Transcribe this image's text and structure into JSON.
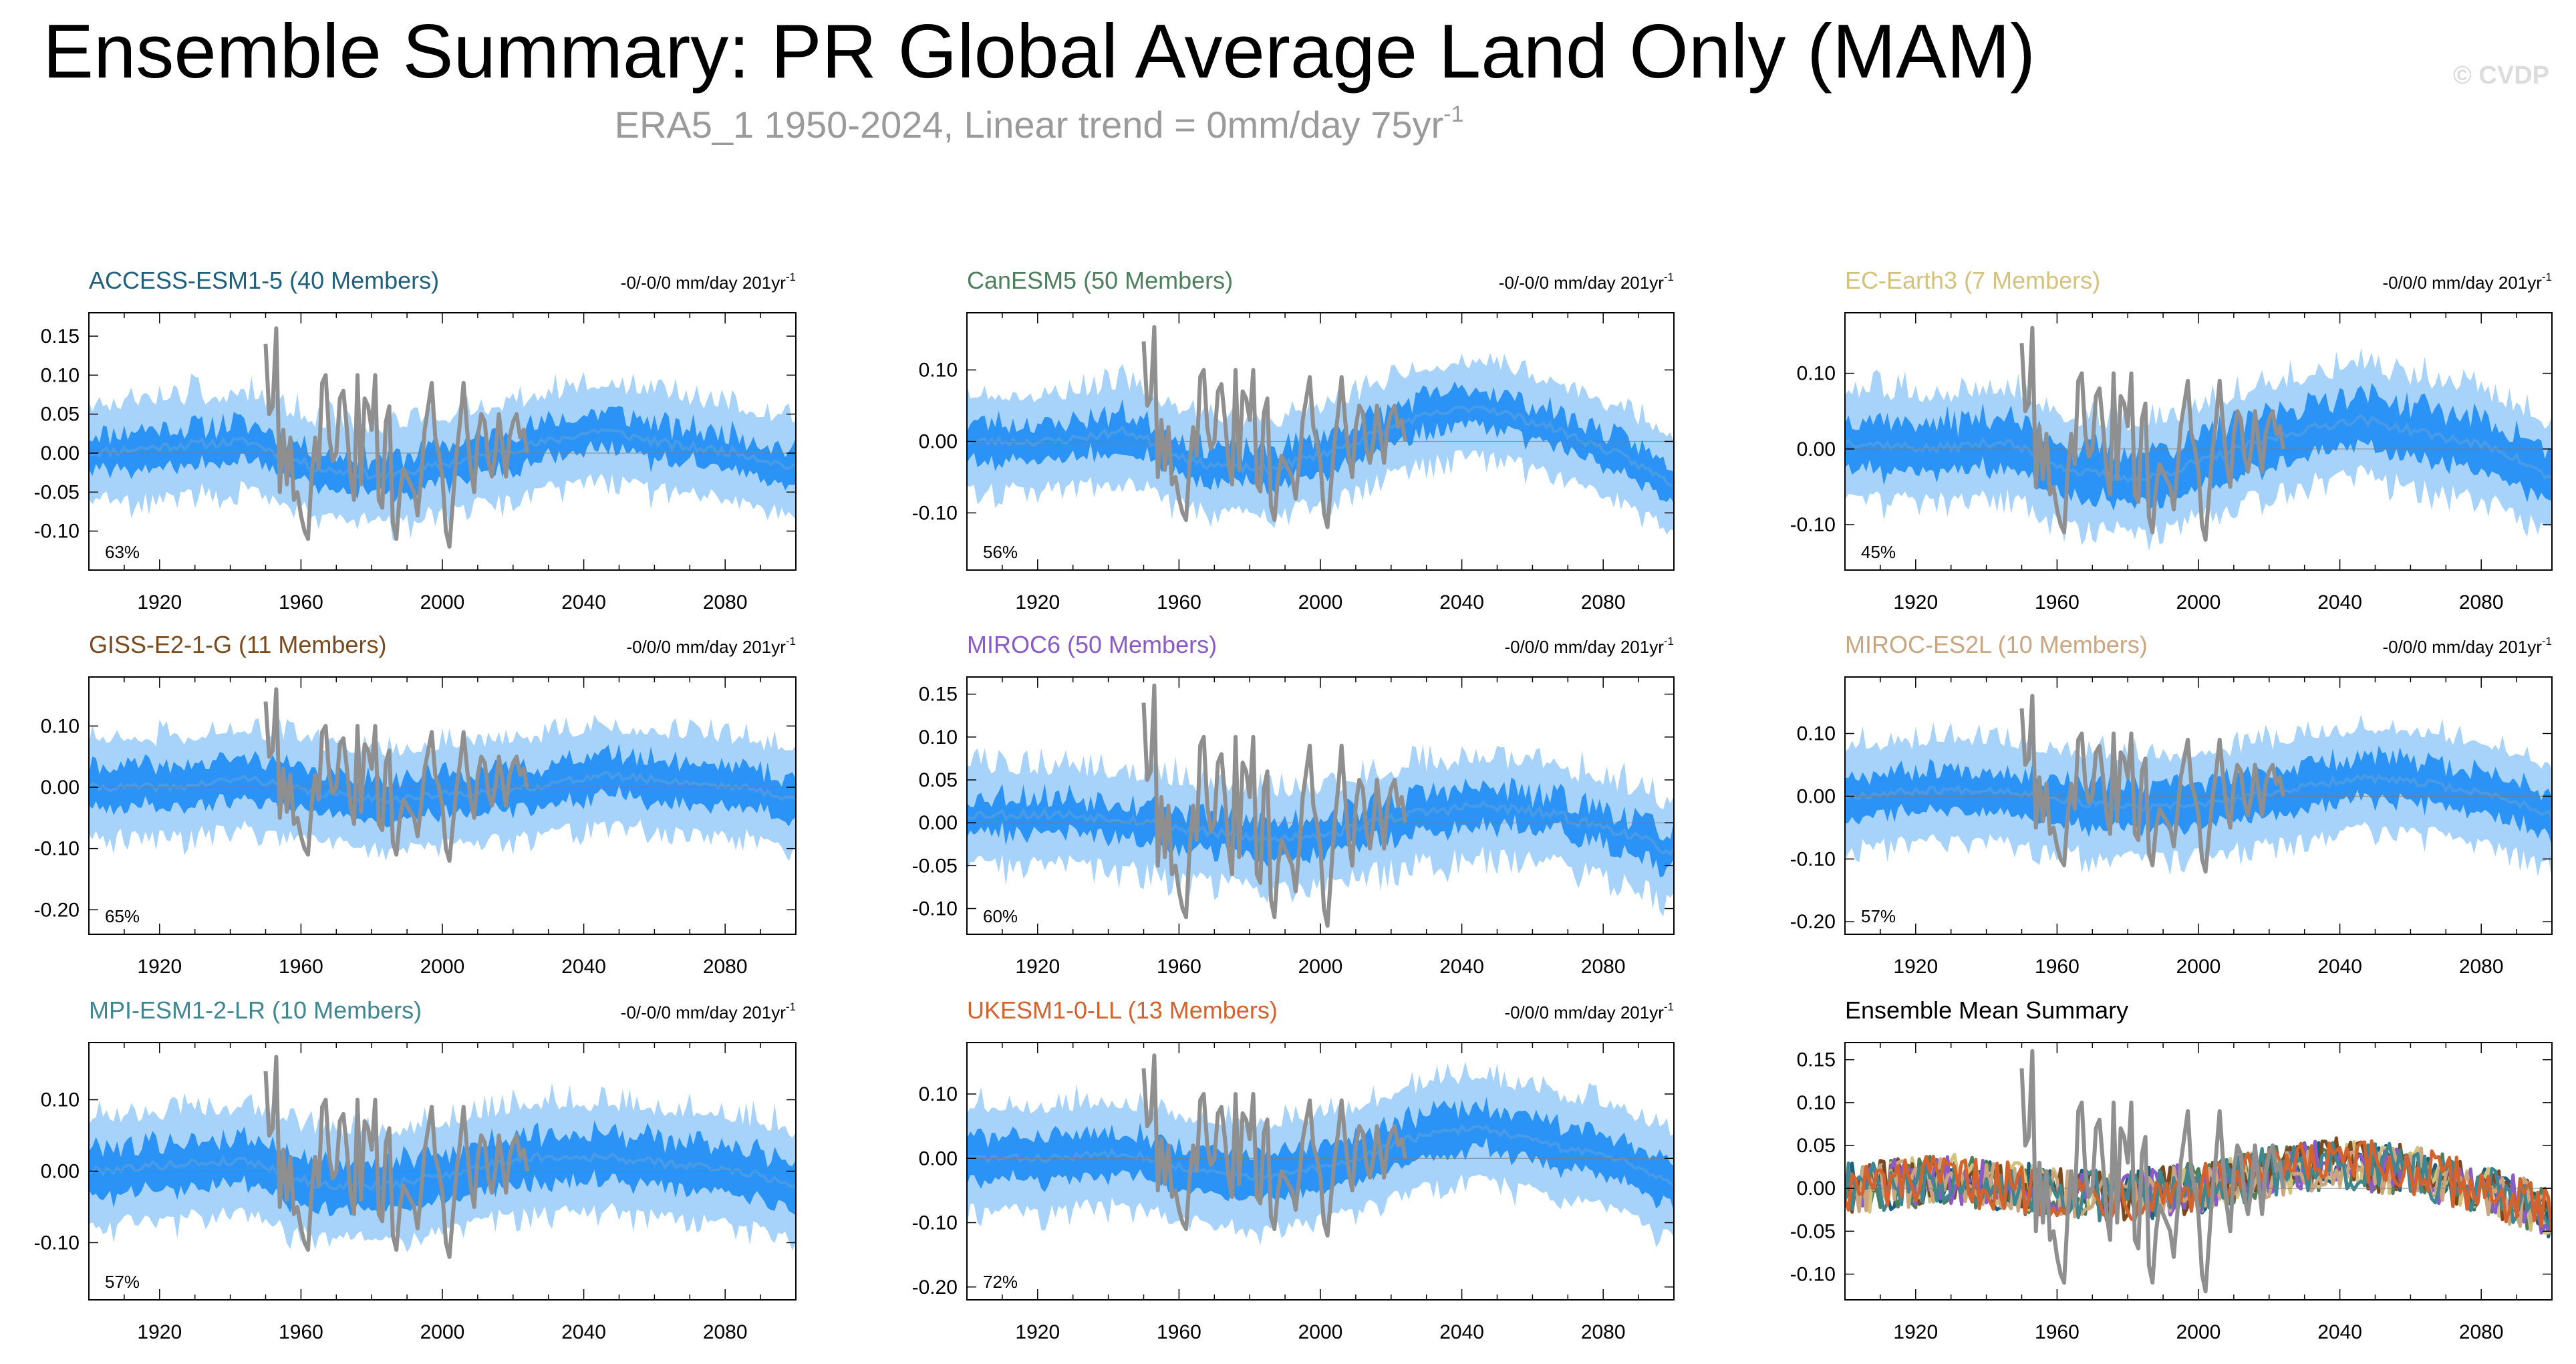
{
  "header": {
    "title": "Ensemble Summary: PR Global Average Land Only (MAM)",
    "subtitle_main": "ERA5_1 1950-2024, Linear trend = 0mm/day 75yr",
    "subtitle_sup": "-1",
    "copyright": "© CVDP"
  },
  "colors": {
    "outer_band": "#a7d3fb",
    "inner_band": "#2b93f5",
    "ens_mean": "#4a9be6",
    "obs": "#8f8f8f"
  },
  "chart_data": [
    {
      "type": "area",
      "id": "access",
      "title": "ACCESS-ESM1-5 (40 Members)",
      "title_color": "#1f5f7e",
      "trend": "-0/-0/0 mm/day 201yr",
      "trend_sup": "-1",
      "pct": "63%",
      "xlim": [
        1900,
        2100
      ],
      "xticks": [
        1920,
        1960,
        2000,
        2040,
        2080
      ],
      "ylim": [
        -0.15,
        0.18
      ],
      "yticks": [
        0.15,
        0.1,
        0.05,
        0.0,
        -0.05,
        -0.1
      ],
      "ytick_labels": [
        "0.15",
        "0.10",
        "0.05",
        "0.00",
        "-0.05",
        "-0.10"
      ],
      "mean_anchors": [
        [
          1900,
          0.0
        ],
        [
          1925,
          0.01
        ],
        [
          1945,
          0.015
        ],
        [
          1965,
          -0.02
        ],
        [
          1985,
          -0.03
        ],
        [
          2005,
          -0.01
        ],
        [
          2025,
          0.01
        ],
        [
          2045,
          0.03
        ],
        [
          2065,
          0.01
        ],
        [
          2085,
          0.0
        ],
        [
          2100,
          -0.02
        ]
      ],
      "inner_halfwidth": 0.028,
      "outer_halfwidth": 0.065,
      "seed": 11
    },
    {
      "type": "area",
      "id": "canesm5",
      "title": "CanESM5 (50 Members)",
      "title_color": "#4d7f5c",
      "trend": "-0/-0/0 mm/day 201yr",
      "trend_sup": "-1",
      "pct": "56%",
      "xlim": [
        1900,
        2100
      ],
      "xticks": [
        1920,
        1960,
        2000,
        2040,
        2080
      ],
      "ylim": [
        -0.18,
        0.18
      ],
      "yticks": [
        0.1,
        0.0,
        -0.1
      ],
      "ytick_labels": [
        "0.10",
        "0.00",
        "-0.10"
      ],
      "mean_anchors": [
        [
          1900,
          0.0
        ],
        [
          1925,
          0.0
        ],
        [
          1945,
          0.015
        ],
        [
          1965,
          -0.03
        ],
        [
          1985,
          -0.04
        ],
        [
          2005,
          -0.01
        ],
        [
          2025,
          0.03
        ],
        [
          2045,
          0.05
        ],
        [
          2065,
          0.02
        ],
        [
          2085,
          -0.02
        ],
        [
          2100,
          -0.06
        ]
      ],
      "inner_halfwidth": 0.03,
      "outer_halfwidth": 0.07,
      "seed": 23
    },
    {
      "type": "area",
      "id": "ecearth3",
      "title": "EC-Earth3 (7 Members)",
      "title_color": "#d4c27c",
      "trend": "-0/0/0 mm/day 201yr",
      "trend_sup": "-1",
      "pct": "45%",
      "xlim": [
        1900,
        2100
      ],
      "xticks": [
        1920,
        1960,
        2000,
        2040,
        2080
      ],
      "ylim": [
        -0.16,
        0.18
      ],
      "yticks": [
        0.1,
        0.0,
        -0.1
      ],
      "ytick_labels": [
        "0.10",
        "0.00",
        "-0.10"
      ],
      "mean_anchors": [
        [
          1900,
          0.01
        ],
        [
          1925,
          0.0
        ],
        [
          1945,
          0.01
        ],
        [
          1965,
          -0.03
        ],
        [
          1985,
          -0.04
        ],
        [
          2005,
          -0.01
        ],
        [
          2025,
          0.02
        ],
        [
          2045,
          0.04
        ],
        [
          2065,
          0.02
        ],
        [
          2085,
          0.0
        ],
        [
          2100,
          -0.04
        ]
      ],
      "inner_halfwidth": 0.04,
      "outer_halfwidth": 0.075,
      "seed": 37
    },
    {
      "type": "area",
      "id": "giss",
      "title": "GISS-E2-1-G (11 Members)",
      "title_color": "#7a4a1e",
      "trend": "-0/0/0 mm/day 201yr",
      "trend_sup": "-1",
      "pct": "65%",
      "xlim": [
        1900,
        2100
      ],
      "xticks": [
        1920,
        1960,
        2000,
        2040,
        2080
      ],
      "ylim": [
        -0.24,
        0.18
      ],
      "yticks": [
        0.1,
        0.0,
        -0.1,
        -0.2
      ],
      "ytick_labels": [
        "0.10",
        "0.00",
        "-0.10",
        "-0.20"
      ],
      "mean_anchors": [
        [
          1900,
          0.0
        ],
        [
          1925,
          0.0
        ],
        [
          1945,
          0.015
        ],
        [
          1965,
          -0.01
        ],
        [
          1985,
          -0.02
        ],
        [
          2005,
          -0.01
        ],
        [
          2025,
          0.0
        ],
        [
          2045,
          0.02
        ],
        [
          2065,
          0.01
        ],
        [
          2085,
          0.0
        ],
        [
          2100,
          -0.02
        ]
      ],
      "inner_halfwidth": 0.04,
      "outer_halfwidth": 0.085,
      "seed": 41
    },
    {
      "type": "area",
      "id": "miroc6",
      "title": "MIROC6 (50 Members)",
      "title_color": "#8a5ac8",
      "trend": "-0/0/0 mm/day 201yr",
      "trend_sup": "-1",
      "pct": "60%",
      "xlim": [
        1900,
        2100
      ],
      "xticks": [
        1920,
        1960,
        2000,
        2040,
        2080
      ],
      "ylim": [
        -0.13,
        0.17
      ],
      "yticks": [
        0.15,
        0.1,
        0.05,
        0.0,
        -0.05,
        -0.1
      ],
      "ytick_labels": [
        "0.15",
        "0.10",
        "0.05",
        "0.00",
        "-0.05",
        "-0.10"
      ],
      "mean_anchors": [
        [
          1900,
          0.01
        ],
        [
          1925,
          0.01
        ],
        [
          1945,
          0.005
        ],
        [
          1965,
          -0.01
        ],
        [
          1985,
          -0.02
        ],
        [
          2005,
          -0.01
        ],
        [
          2025,
          0.01
        ],
        [
          2045,
          0.02
        ],
        [
          2065,
          0.01
        ],
        [
          2085,
          -0.01
        ],
        [
          2100,
          -0.035
        ]
      ],
      "inner_halfwidth": 0.025,
      "outer_halfwidth": 0.06,
      "seed": 53
    },
    {
      "type": "area",
      "id": "miroces2l",
      "title": "MIROC-ES2L (10 Members)",
      "title_color": "#c9a680",
      "trend": "-0/0/0 mm/day 201yr",
      "trend_sup": "-1",
      "pct": "57%",
      "xlim": [
        1900,
        2100
      ],
      "xticks": [
        1920,
        1960,
        2000,
        2040,
        2080
      ],
      "ylim": [
        -0.22,
        0.19
      ],
      "yticks": [
        0.1,
        0.0,
        -0.1,
        -0.2
      ],
      "ytick_labels": [
        "0.10",
        "0.00",
        "-0.10",
        "-0.20"
      ],
      "mean_anchors": [
        [
          1900,
          0.0
        ],
        [
          1925,
          0.01
        ],
        [
          1945,
          0.01
        ],
        [
          1965,
          -0.01
        ],
        [
          1985,
          -0.02
        ],
        [
          2005,
          -0.01
        ],
        [
          2025,
          0.01
        ],
        [
          2045,
          0.03
        ],
        [
          2065,
          0.02
        ],
        [
          2085,
          0.0
        ],
        [
          2100,
          -0.03
        ]
      ],
      "inner_halfwidth": 0.04,
      "outer_halfwidth": 0.085,
      "seed": 67
    },
    {
      "type": "area",
      "id": "mpi",
      "title": "MPI-ESM1-2-LR (10 Members)",
      "title_color": "#3f8790",
      "trend": "-0/-0/0 mm/day 201yr",
      "trend_sup": "-1",
      "pct": "57%",
      "xlim": [
        1900,
        2100
      ],
      "xticks": [
        1920,
        1960,
        2000,
        2040,
        2080
      ],
      "ylim": [
        -0.18,
        0.18
      ],
      "yticks": [
        0.1,
        0.0,
        -0.1
      ],
      "ytick_labels": [
        "0.10",
        "0.00",
        "-0.10"
      ],
      "mean_anchors": [
        [
          1900,
          0.0
        ],
        [
          1925,
          0.01
        ],
        [
          1945,
          0.015
        ],
        [
          1965,
          -0.02
        ],
        [
          1985,
          -0.02
        ],
        [
          2005,
          0.0
        ],
        [
          2025,
          0.02
        ],
        [
          2045,
          0.02
        ],
        [
          2065,
          0.01
        ],
        [
          2085,
          0.0
        ],
        [
          2100,
          -0.02
        ]
      ],
      "inner_halfwidth": 0.04,
      "outer_halfwidth": 0.08,
      "seed": 79
    },
    {
      "type": "area",
      "id": "ukesm",
      "title": "UKESM1-0-LL (13 Members)",
      "title_color": "#d4622c",
      "trend": "-0/0/0 mm/day 201yr",
      "trend_sup": "-1",
      "pct": "72%",
      "xlim": [
        1900,
        2100
      ],
      "xticks": [
        1920,
        1960,
        2000,
        2040,
        2080
      ],
      "ylim": [
        -0.22,
        0.18
      ],
      "yticks": [
        0.1,
        0.0,
        -0.1,
        -0.2
      ],
      "ytick_labels": [
        "0.10",
        "0.00",
        "-0.10",
        "-0.20"
      ],
      "mean_anchors": [
        [
          1900,
          0.0
        ],
        [
          1925,
          0.0
        ],
        [
          1945,
          0.01
        ],
        [
          1965,
          -0.02
        ],
        [
          1985,
          -0.03
        ],
        [
          2005,
          -0.01
        ],
        [
          2025,
          0.03
        ],
        [
          2045,
          0.05
        ],
        [
          2065,
          0.02
        ],
        [
          2085,
          0.0
        ],
        [
          2100,
          -0.04
        ]
      ],
      "inner_halfwidth": 0.04,
      "outer_halfwidth": 0.085,
      "seed": 83
    },
    {
      "type": "line",
      "id": "summary",
      "title": "Ensemble Mean Summary",
      "title_color": "#000000",
      "xlim": [
        1900,
        2100
      ],
      "xticks": [
        1920,
        1960,
        2000,
        2040,
        2080
      ],
      "ylim": [
        -0.13,
        0.17
      ],
      "yticks": [
        0.15,
        0.1,
        0.05,
        0.0,
        -0.05,
        -0.1
      ],
      "ytick_labels": [
        "0.15",
        "0.10",
        "0.05",
        "0.00",
        "-0.05",
        "-0.10"
      ],
      "series": [
        {
          "name": "ACCESS-ESM1-5",
          "color": "#1f5f7e",
          "seed": 101
        },
        {
          "name": "CanESM5",
          "color": "#4d7f5c",
          "seed": 102
        },
        {
          "name": "EC-Earth3",
          "color": "#d4c27c",
          "seed": 103
        },
        {
          "name": "GISS-E2-1-G",
          "color": "#7a4a1e",
          "seed": 104
        },
        {
          "name": "MIROC6",
          "color": "#8a5ac8",
          "seed": 105
        },
        {
          "name": "MIROC-ES2L",
          "color": "#c9a680",
          "seed": 106
        },
        {
          "name": "MPI-ESM1-2-LR",
          "color": "#3f8790",
          "seed": 107
        },
        {
          "name": "UKESM1-0-LL",
          "color": "#d4622c",
          "seed": 108
        }
      ],
      "summary_anchors": [
        [
          1900,
          0.0
        ],
        [
          1930,
          0.01
        ],
        [
          1950,
          0.0
        ],
        [
          1975,
          -0.01
        ],
        [
          2000,
          0.0
        ],
        [
          2020,
          0.02
        ],
        [
          2040,
          0.03
        ],
        [
          2060,
          0.02
        ],
        [
          2080,
          0.0
        ],
        [
          2100,
          -0.03
        ]
      ]
    }
  ],
  "observations": {
    "name": "ERA5_1",
    "years": [
      1950,
      1951,
      1952,
      1953,
      1954,
      1955,
      1956,
      1957,
      1958,
      1959,
      1960,
      1961,
      1962,
      1963,
      1964,
      1965,
      1966,
      1967,
      1968,
      1969,
      1970,
      1971,
      1972,
      1973,
      1974,
      1975,
      1976,
      1977,
      1978,
      1979,
      1980,
      1981,
      1982,
      1983,
      1984,
      1985,
      1986,
      1987,
      1988,
      1989,
      1990,
      1991,
      1992,
      1993,
      1994,
      1995,
      1996,
      1997,
      1998,
      1999,
      2000,
      2001,
      2002,
      2003,
      2004,
      2005,
      2006,
      2007,
      2008,
      2009,
      2010,
      2011,
      2012,
      2013,
      2014,
      2015,
      2016,
      2017,
      2018,
      2019,
      2020,
      2021,
      2022,
      2023,
      2024
    ],
    "values": [
      0.14,
      0.05,
      0.06,
      0.16,
      -0.05,
      0.03,
      -0.04,
      0.02,
      -0.06,
      -0.05,
      -0.08,
      -0.1,
      -0.11,
      -0.03,
      0.02,
      -0.02,
      0.09,
      0.1,
      0.02,
      -0.01,
      0.0,
      0.07,
      0.08,
      0.03,
      -0.03,
      -0.06,
      0.1,
      -0.04,
      0.07,
      0.06,
      0.03,
      0.1,
      -0.06,
      -0.07,
      0.04,
      0.06,
      -0.09,
      -0.11,
      -0.05,
      -0.02,
      -0.03,
      -0.04,
      -0.05,
      -0.08,
      -0.03,
      0.03,
      0.06,
      0.09,
      0.02,
      0.0,
      -0.03,
      -0.1,
      -0.12,
      -0.06,
      0.0,
      0.04,
      0.09,
      0.03,
      -0.02,
      -0.05,
      0.02,
      0.05,
      0.04,
      -0.01,
      -0.03,
      0.0,
      0.05,
      0.01,
      -0.03,
      0.02,
      0.04,
      0.05,
      0.02,
      0.03,
      0.0
    ]
  }
}
